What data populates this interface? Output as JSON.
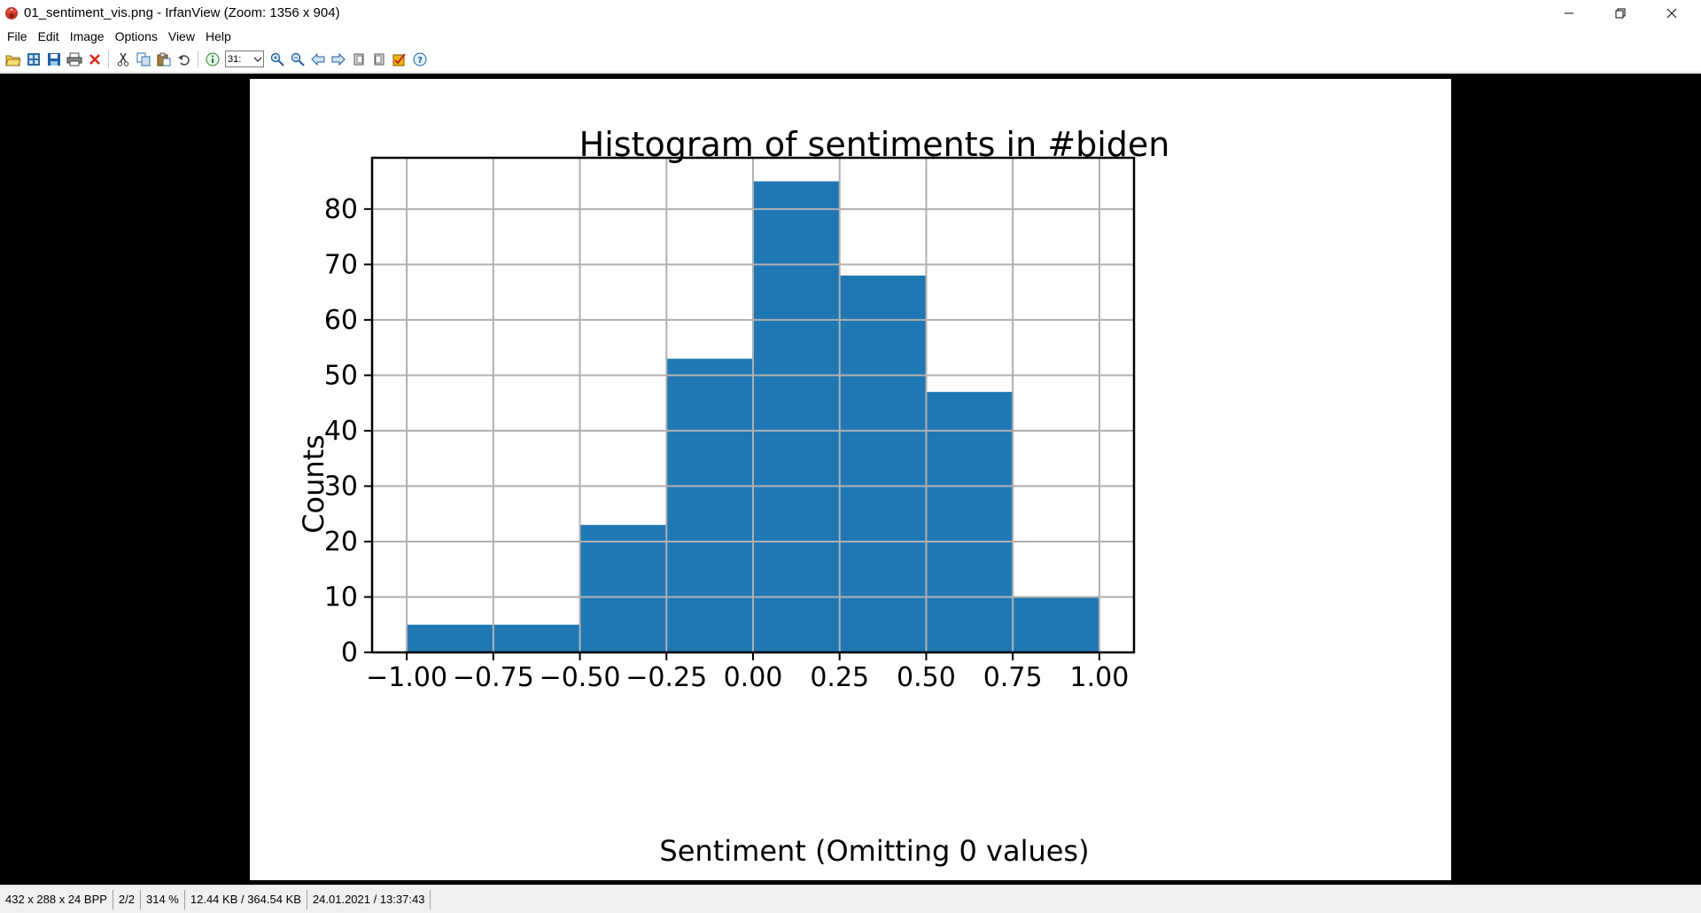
{
  "window": {
    "title": "01_sentiment_vis.png - IrfanView (Zoom: 1356 x 904)"
  },
  "menu": [
    "File",
    "Edit",
    "Image",
    "Options",
    "View",
    "Help"
  ],
  "toolbar": {
    "zoom_value": "31:",
    "icons": [
      "open-icon",
      "thumbnails-icon",
      "save-icon",
      "print-icon",
      "delete-icon",
      "cut-icon",
      "copy-icon",
      "paste-icon",
      "undo-icon",
      "info-icon",
      "zoom-in-icon",
      "zoom-out-icon",
      "previous-icon",
      "next-icon",
      "first-icon",
      "last-icon",
      "paint-icon",
      "help-icon"
    ]
  },
  "status": {
    "dimensions": "432 x 288 x 24 BPP",
    "index": "2/2",
    "zoom": "314 %",
    "size": "12.44 KB / 364.54 KB",
    "date": "24.01.2021 / 13:37:43"
  },
  "colors": {
    "bar": "#1f77b4",
    "viewer_bg": "#000000"
  },
  "chart_data": {
    "type": "bar",
    "title": "Histogram of sentiments in #biden",
    "xlabel": "Sentiment (Omitting 0 values)",
    "ylabel": "Counts",
    "bin_edges": [
      -1.0,
      -0.75,
      -0.5,
      -0.25,
      0.0,
      0.25,
      0.5,
      0.75,
      1.0
    ],
    "bins": [
      {
        "from": -1.0,
        "to": -0.75,
        "count": 5
      },
      {
        "from": -0.75,
        "to": -0.5,
        "count": 5
      },
      {
        "from": -0.5,
        "to": -0.25,
        "count": 23
      },
      {
        "from": -0.25,
        "to": 0.0,
        "count": 53
      },
      {
        "from": 0.0,
        "to": 0.25,
        "count": 85
      },
      {
        "from": 0.25,
        "to": 0.5,
        "count": 68
      },
      {
        "from": 0.5,
        "to": 0.75,
        "count": 47
      },
      {
        "from": 0.75,
        "to": 1.0,
        "count": 10
      }
    ],
    "xticks": [
      "−1.00",
      "−0.75",
      "−0.50",
      "−0.25",
      "0.00",
      "0.25",
      "0.50",
      "0.75",
      "1.00"
    ],
    "xtick_values": [
      -1.0,
      -0.75,
      -0.5,
      -0.25,
      0.0,
      0.25,
      0.5,
      0.75,
      1.0
    ],
    "yticks": [
      "0",
      "10",
      "20",
      "30",
      "40",
      "50",
      "60",
      "70",
      "80"
    ],
    "ytick_values": [
      0,
      10,
      20,
      30,
      40,
      50,
      60,
      70,
      80
    ],
    "xlim": [
      -1.1,
      1.1
    ],
    "ylim": [
      0,
      89.25
    ],
    "grid": true,
    "legend": "none"
  }
}
